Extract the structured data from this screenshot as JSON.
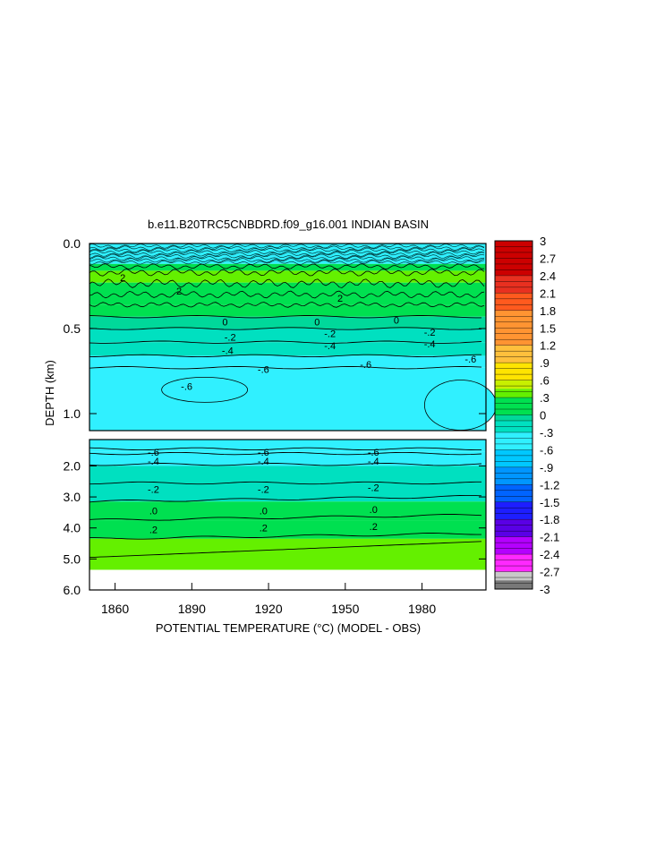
{
  "chart_data": {
    "type": "heatmap",
    "title": "b.e11.B20TRC5CNBDRD.f09_g16.001 INDIAN BASIN",
    "xlabel": "POTENTIAL TEMPERATURE (°C) (MODEL - OBS)",
    "ylabel": "DEPTH (km)",
    "x_ticks": [
      "1860",
      "1890",
      "1920",
      "1950",
      "1980"
    ],
    "x_tick_values": [
      1860,
      1890,
      1920,
      1950,
      1980
    ],
    "xlim": [
      1850,
      2005
    ],
    "panels": [
      {
        "name": "upper",
        "ylim": [
          0.0,
          1.1
        ],
        "y_ticks": [
          "0.0",
          "0.5",
          "1.0"
        ],
        "y_tick_values": [
          0.0,
          0.5,
          1.0
        ],
        "bands": [
          {
            "top": 0.0,
            "bottom": 0.12,
            "value": -0.5
          },
          {
            "top": 0.12,
            "bottom": 0.16,
            "value": 0.0
          },
          {
            "top": 0.16,
            "bottom": 0.23,
            "value": 0.35
          },
          {
            "top": 0.23,
            "bottom": 0.3,
            "value": 0.25
          },
          {
            "top": 0.3,
            "bottom": 0.36,
            "value": 0.15
          },
          {
            "top": 0.36,
            "bottom": 0.43,
            "value": 0.05
          },
          {
            "top": 0.43,
            "bottom": 0.5,
            "value": -0.05
          },
          {
            "top": 0.5,
            "bottom": 0.58,
            "value": -0.15
          },
          {
            "top": 0.58,
            "bottom": 0.66,
            "value": -0.25
          },
          {
            "top": 0.66,
            "bottom": 0.73,
            "value": -0.35
          },
          {
            "top": 0.73,
            "bottom": 1.1,
            "value": -0.45
          }
        ],
        "contour_depths": [
          0.43,
          0.5,
          0.58,
          0.66,
          0.73
        ],
        "contour_labels": [
          {
            "text": "2",
            "x": 1863,
            "depth": 0.2
          },
          {
            "text": "2",
            "x": 1885,
            "depth": 0.28
          },
          {
            "text": "0",
            "x": 1903,
            "depth": 0.46
          },
          {
            "text": "0",
            "x": 1939,
            "depth": 0.46
          },
          {
            "text": "0",
            "x": 1970,
            "depth": 0.45
          },
          {
            "text": "-.2",
            "x": 1905,
            "depth": 0.55
          },
          {
            "text": "-.2",
            "x": 1944,
            "depth": 0.53
          },
          {
            "text": "-.2",
            "x": 1983,
            "depth": 0.52
          },
          {
            "text": "-.4",
            "x": 1904,
            "depth": 0.63
          },
          {
            "text": "-.4",
            "x": 1944,
            "depth": 0.6
          },
          {
            "text": "-.4",
            "x": 1983,
            "depth": 0.59
          },
          {
            "text": "-.6",
            "x": 1918,
            "depth": 0.74
          },
          {
            "text": "-.6",
            "x": 1958,
            "depth": 0.71
          },
          {
            "text": "-.6",
            "x": 1999,
            "depth": 0.68
          },
          {
            "text": "-.6",
            "x": 1888,
            "depth": 0.84
          },
          {
            "text": "2",
            "x": 1948,
            "depth": 0.32
          }
        ]
      },
      {
        "name": "lower",
        "ylim": [
          1.15,
          6.0
        ],
        "y_ticks": [
          "2.0",
          "3.0",
          "4.0",
          "5.0",
          "6.0"
        ],
        "y_tick_values": [
          2.0,
          3.0,
          4.0,
          5.0,
          6.0
        ],
        "data_bottom": 5.35,
        "bands": [
          {
            "top": 1.15,
            "bottom": 1.55,
            "value": -0.5
          },
          {
            "top": 1.55,
            "bottom": 2.0,
            "value": -0.45
          },
          {
            "top": 2.0,
            "bottom": 2.55,
            "value": -0.3
          },
          {
            "top": 2.55,
            "bottom": 3.15,
            "value": -0.15
          },
          {
            "top": 3.15,
            "bottom": 3.75,
            "value": 0.05
          },
          {
            "top": 3.75,
            "bottom": 4.35,
            "value": 0.2
          },
          {
            "top": 4.35,
            "bottom": 5.35,
            "value": 0.4
          }
        ],
        "contour_depths": [
          1.45,
          1.6,
          1.95,
          2.55,
          3.15,
          3.75,
          4.35
        ],
        "contour_labels": [
          {
            "text": "-.6",
            "x": 1875,
            "depth": 1.55
          },
          {
            "text": "-.6",
            "x": 1918,
            "depth": 1.55
          },
          {
            "text": "-.6",
            "x": 1961,
            "depth": 1.55
          },
          {
            "text": "-.4",
            "x": 1875,
            "depth": 1.85
          },
          {
            "text": "-.4",
            "x": 1918,
            "depth": 1.85
          },
          {
            "text": "-.4",
            "x": 1961,
            "depth": 1.85
          },
          {
            "text": "-.2",
            "x": 1875,
            "depth": 2.75
          },
          {
            "text": "-.2",
            "x": 1918,
            "depth": 2.75
          },
          {
            "text": "-.2",
            "x": 1961,
            "depth": 2.7
          },
          {
            "text": ".0",
            "x": 1875,
            "depth": 3.45
          },
          {
            "text": ".0",
            "x": 1918,
            "depth": 3.45
          },
          {
            "text": ".0",
            "x": 1961,
            "depth": 3.4
          },
          {
            "text": ".2",
            "x": 1875,
            "depth": 4.05
          },
          {
            "text": ".2",
            "x": 1918,
            "depth": 4.0
          },
          {
            "text": ".2",
            "x": 1961,
            "depth": 3.95
          }
        ]
      }
    ],
    "colorbar": {
      "min": -3.0,
      "max": 3.0,
      "labels": [
        "3",
        "2.7",
        "2.4",
        "2.1",
        "1.8",
        "1.5",
        "1.2",
        ".9",
        ".6",
        ".3",
        "0",
        "-.3",
        "-.6",
        "-.9",
        "-1.2",
        "-1.5",
        "-1.8",
        "-2.1",
        "-2.4",
        "-2.7",
        "-3"
      ],
      "label_values": [
        3.0,
        2.7,
        2.4,
        2.1,
        1.8,
        1.5,
        1.2,
        0.9,
        0.6,
        0.3,
        0.0,
        -0.3,
        -0.6,
        -0.9,
        -1.2,
        -1.5,
        -1.8,
        -2.1,
        -2.4,
        -2.7,
        -3.0
      ],
      "colors": [
        {
          "from": 2.4,
          "to": 3.0,
          "color": "#cc0000"
        },
        {
          "from": 2.1,
          "to": 2.4,
          "color": "#e83020"
        },
        {
          "from": 1.8,
          "to": 2.1,
          "color": "#ff5a1e"
        },
        {
          "from": 1.2,
          "to": 1.8,
          "color": "#ff9432"
        },
        {
          "from": 0.9,
          "to": 1.2,
          "color": "#ffc03c"
        },
        {
          "from": 0.6,
          "to": 0.9,
          "color": "#ffe400"
        },
        {
          "from": 0.45,
          "to": 0.6,
          "color": "#c8f000"
        },
        {
          "from": 0.3,
          "to": 0.45,
          "color": "#64f000"
        },
        {
          "from": 0.0,
          "to": 0.3,
          "color": "#00e050"
        },
        {
          "from": -0.1,
          "to": 0.0,
          "color": "#00d89a"
        },
        {
          "from": -0.3,
          "to": -0.1,
          "color": "#00e0c0"
        },
        {
          "from": -0.6,
          "to": -0.3,
          "color": "#30f0ff"
        },
        {
          "from": -0.9,
          "to": -0.6,
          "color": "#00c8ff"
        },
        {
          "from": -1.2,
          "to": -0.9,
          "color": "#0096ff"
        },
        {
          "from": -1.5,
          "to": -1.2,
          "color": "#0064ff"
        },
        {
          "from": -1.8,
          "to": -1.5,
          "color": "#1e1eff"
        },
        {
          "from": -2.1,
          "to": -1.8,
          "color": "#5a00e6"
        },
        {
          "from": -2.4,
          "to": -2.1,
          "color": "#b400ff"
        },
        {
          "from": -2.7,
          "to": -2.4,
          "color": "#ff28ff"
        },
        {
          "from": -2.85,
          "to": -2.7,
          "color": "#c8c8c8"
        },
        {
          "from": -3.0,
          "to": -2.85,
          "color": "#787878"
        }
      ]
    }
  }
}
